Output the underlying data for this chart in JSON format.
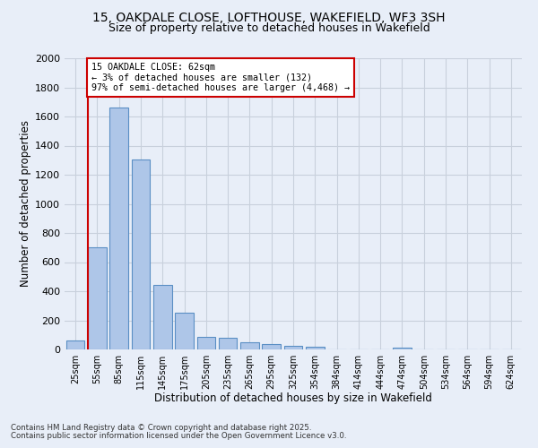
{
  "title_line1": "15, OAKDALE CLOSE, LOFTHOUSE, WAKEFIELD, WF3 3SH",
  "title_line2": "Size of property relative to detached houses in Wakefield",
  "xlabel": "Distribution of detached houses by size in Wakefield",
  "ylabel": "Number of detached properties",
  "categories": [
    "25sqm",
    "55sqm",
    "85sqm",
    "115sqm",
    "145sqm",
    "175sqm",
    "205sqm",
    "235sqm",
    "265sqm",
    "295sqm",
    "325sqm",
    "354sqm",
    "384sqm",
    "414sqm",
    "444sqm",
    "474sqm",
    "504sqm",
    "534sqm",
    "564sqm",
    "594sqm",
    "624sqm"
  ],
  "values": [
    60,
    700,
    1660,
    1305,
    445,
    250,
    85,
    80,
    50,
    40,
    25,
    20,
    0,
    0,
    0,
    15,
    0,
    0,
    0,
    0,
    0
  ],
  "bar_color": "#aec6e8",
  "bar_edge_color": "#5a8fc4",
  "annotation_line1": "15 OAKDALE CLOSE: 62sqm",
  "annotation_line2": "← 3% of detached houses are smaller (132)",
  "annotation_line3": "97% of semi-detached houses are larger (4,468) →",
  "vline_color": "#cc0000",
  "annotation_box_color": "#cc0000",
  "ylim": [
    0,
    2000
  ],
  "yticks": [
    0,
    200,
    400,
    600,
    800,
    1000,
    1200,
    1400,
    1600,
    1800,
    2000
  ],
  "grid_color": "#c8d0dc",
  "bg_color": "#e8eef8",
  "footnote1": "Contains HM Land Registry data © Crown copyright and database right 2025.",
  "footnote2": "Contains public sector information licensed under the Open Government Licence v3.0."
}
